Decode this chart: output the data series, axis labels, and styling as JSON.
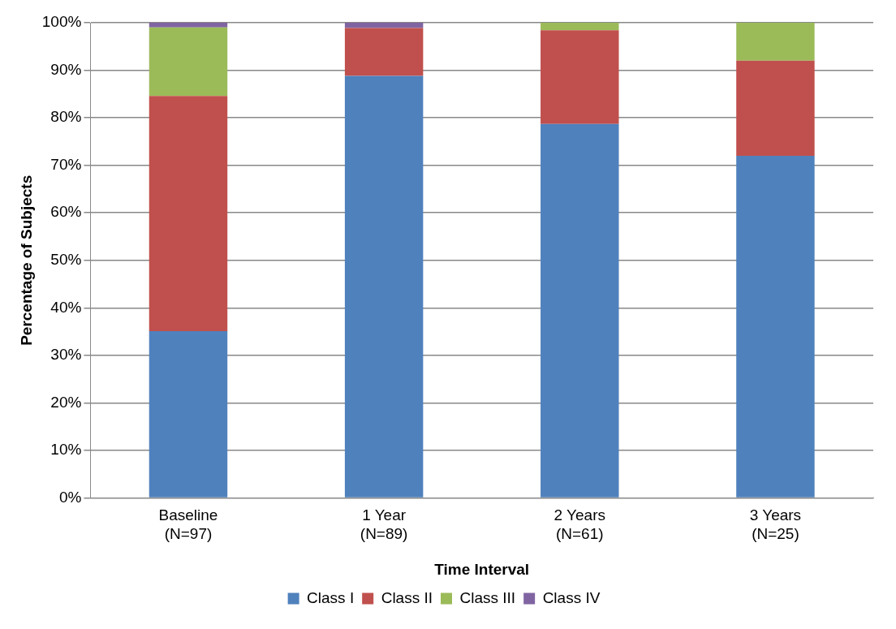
{
  "chart_data": {
    "type": "bar",
    "stacked": true,
    "xlabel": "Time Interval",
    "ylabel": "Percentage of Subjects",
    "categories": [
      "Baseline\n(N=97)",
      "1 Year\n(N=89)",
      "2 Years\n(N=61)",
      "3 Years\n(N=25)"
    ],
    "series": [
      {
        "name": "Class I",
        "color": "#4f81bd",
        "values": [
          35.1,
          88.8,
          78.7,
          72
        ]
      },
      {
        "name": "Class II",
        "color": "#c0504d",
        "values": [
          49.5,
          10.1,
          19.7,
          20
        ]
      },
      {
        "name": "Class III",
        "color": "#9bbb59",
        "values": [
          14.4,
          0,
          1.6,
          8
        ]
      },
      {
        "name": "Class IV",
        "color": "#8064a2",
        "values": [
          1,
          1.1,
          0,
          0
        ]
      }
    ],
    "ylim": [
      0,
      100
    ],
    "yticks": [
      {
        "value": 0,
        "label": "0%"
      },
      {
        "value": 10,
        "label": "10%"
      },
      {
        "value": 20,
        "label": "20%"
      },
      {
        "value": 30,
        "label": "30%"
      },
      {
        "value": 40,
        "label": "40%"
      },
      {
        "value": 50,
        "label": "50%"
      },
      {
        "value": 60,
        "label": "60%"
      },
      {
        "value": 70,
        "label": "70%"
      },
      {
        "value": 80,
        "label": "80%"
      },
      {
        "value": 90,
        "label": "90%"
      },
      {
        "value": 100,
        "label": "100%"
      }
    ],
    "grid": "y",
    "legend": "bottom"
  }
}
